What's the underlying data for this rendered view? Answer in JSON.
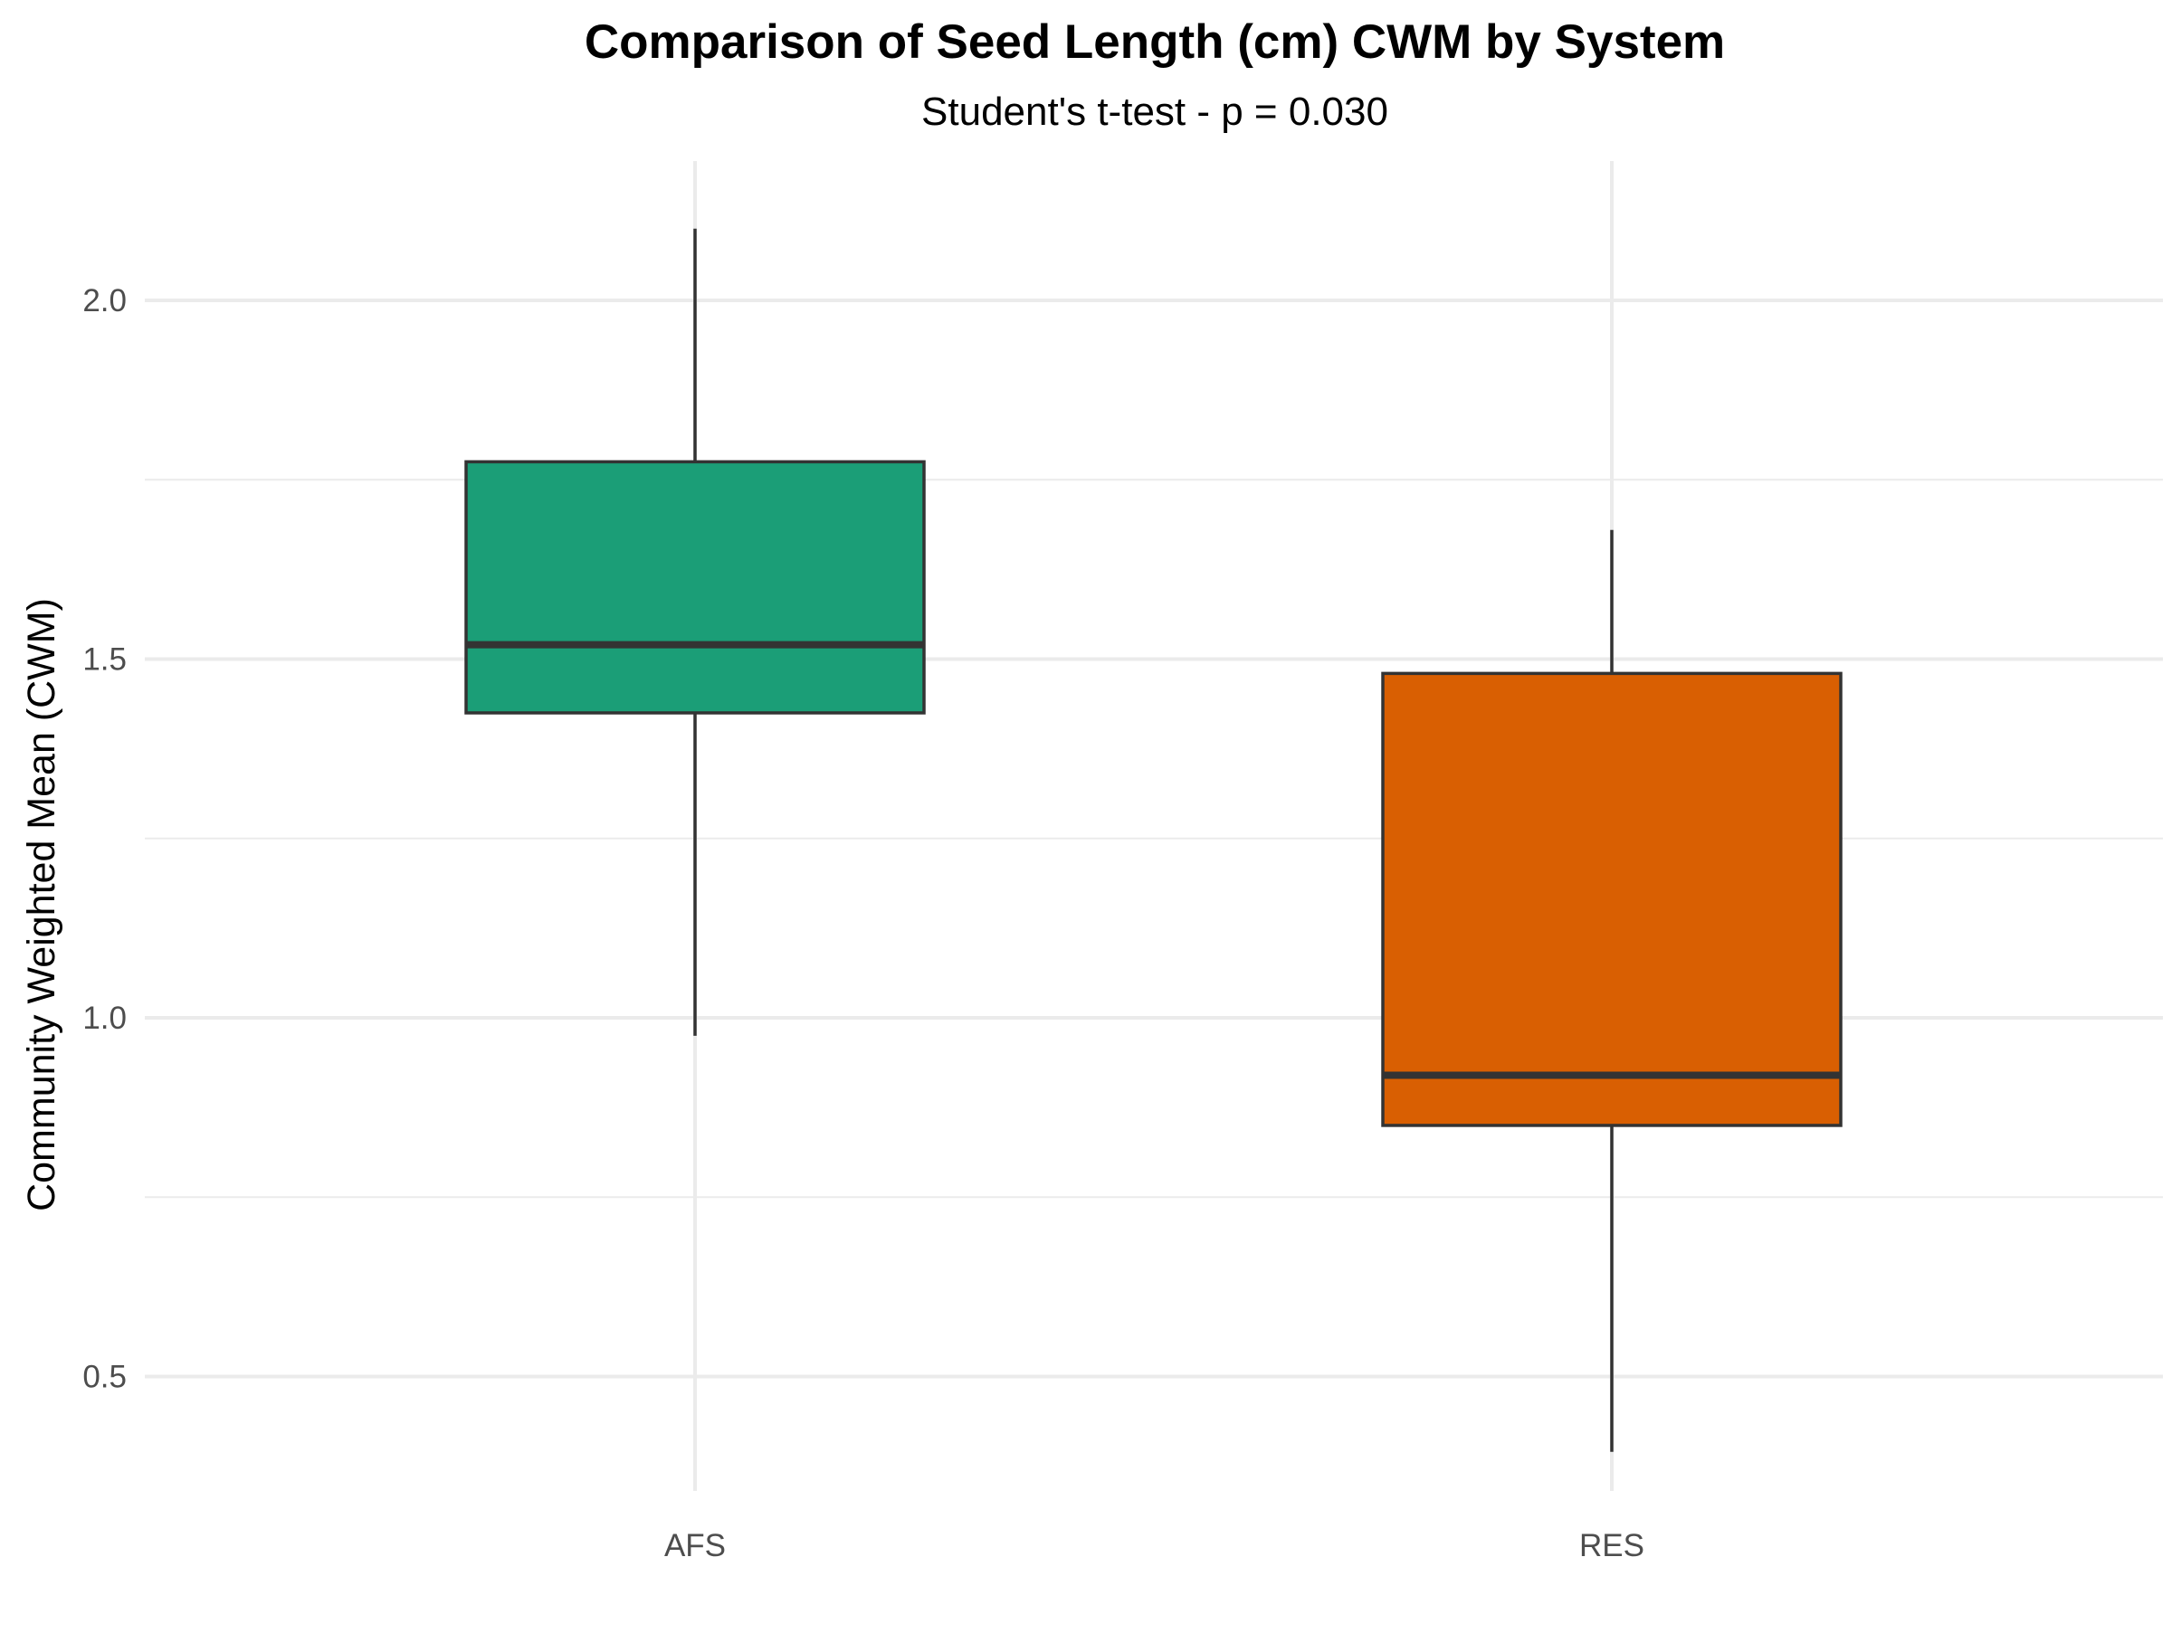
{
  "chart_data": {
    "type": "box",
    "title": "Comparison of Seed Length (cm) CWM by System",
    "subtitle": "Student's t-test - p = 0.030",
    "xlabel": "",
    "ylabel": "Community Weighted Mean (CWM)",
    "ylim": [
      0.36,
      2.2
    ],
    "yticks": [
      0.5,
      1.0,
      1.5,
      2.0
    ],
    "ytick_labels": [
      "0.5",
      "1.0",
      "1.5",
      "2.0"
    ],
    "grid": true,
    "categories": [
      "AFS",
      "RES"
    ],
    "boxes": [
      {
        "category": "AFS",
        "whisker_low": 0.975,
        "q1": 1.425,
        "median": 1.52,
        "q3": 1.775,
        "whisker_high": 2.1,
        "color": "#1b9e77"
      },
      {
        "category": "RES",
        "whisker_low": 0.395,
        "q1": 0.85,
        "median": 0.92,
        "q3": 1.48,
        "whisker_high": 1.68,
        "color": "#d95f02"
      }
    ]
  }
}
